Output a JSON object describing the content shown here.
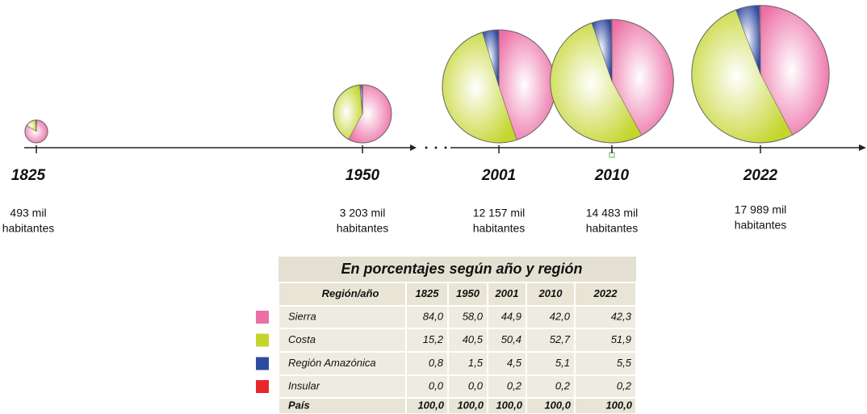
{
  "chart_data": {
    "type": "pie",
    "categories": [
      "1825",
      "1950",
      "2001",
      "2010",
      "2022"
    ],
    "population": [
      493,
      3203,
      12157,
      14483,
      17989
    ],
    "population_labels": [
      "493 mil",
      "3 203 mil",
      "12 157 mil",
      "14 483 mil",
      "17 989 mil"
    ],
    "population_unit": "habitantes",
    "table_title": "En porcentajes según año y región",
    "table_header": "Región/año",
    "series": [
      {
        "name": "Sierra",
        "color": "#ec6fa6",
        "values": [
          84.0,
          58.0,
          44.9,
          42.0,
          42.3
        ],
        "value_labels": [
          "84,0",
          "58,0",
          "44,9",
          "42,0",
          "42,3"
        ]
      },
      {
        "name": "Costa",
        "color": "#c4d52c",
        "values": [
          15.2,
          40.5,
          50.4,
          52.7,
          51.9
        ],
        "value_labels": [
          "15,2",
          "40,5",
          "50,4",
          "52,7",
          "51,9"
        ]
      },
      {
        "name": "Región Amazónica",
        "color": "#2f4aa2",
        "values": [
          0.8,
          1.5,
          4.5,
          5.1,
          5.5
        ],
        "value_labels": [
          "0,8",
          "1,5",
          "4,5",
          "5,1",
          "5,5"
        ]
      },
      {
        "name": "Insular",
        "color": "#e8262c",
        "values": [
          0.0,
          0.0,
          0.2,
          0.2,
          0.2
        ],
        "value_labels": [
          "0,0",
          "0,0",
          "0,2",
          "0,2",
          "0,2"
        ]
      }
    ],
    "total_name": "País",
    "total_values": [
      100,
      100,
      100,
      100,
      100
    ],
    "total_labels": [
      "100,0",
      "100,0",
      "100,0",
      "100,0",
      "100,0"
    ]
  }
}
